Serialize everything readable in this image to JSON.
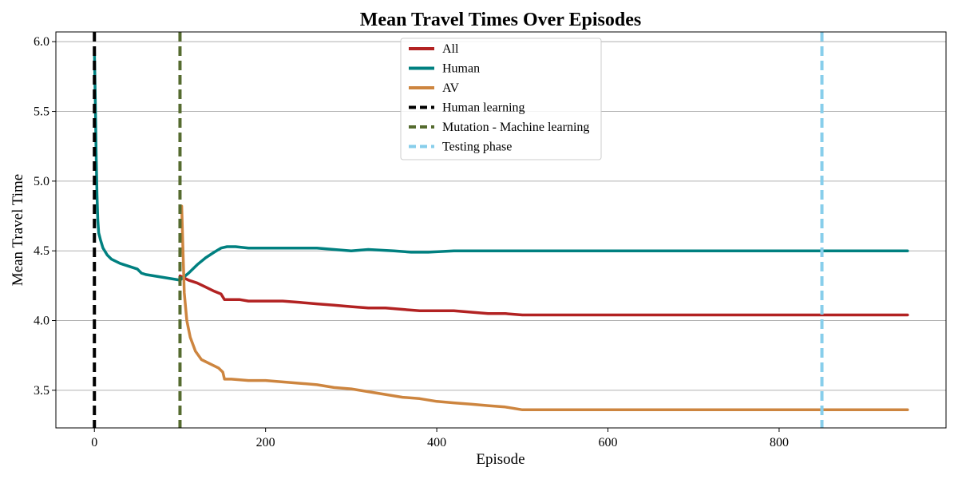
{
  "chart_data": {
    "type": "line",
    "title": "Mean Travel Times Over Episodes",
    "xlabel": "Episode",
    "ylabel": "Mean Travel Time",
    "xlim": [
      -45,
      995
    ],
    "ylim": [
      3.23,
      6.07
    ],
    "xticks": [
      0,
      200,
      400,
      600,
      800
    ],
    "yticks": [
      3.5,
      4.0,
      4.5,
      5.0,
      5.5,
      6.0
    ],
    "ytick_labels": [
      "3.5",
      "4.0",
      "4.5",
      "5.0",
      "5.5",
      "6.0"
    ],
    "grid": "horizontal",
    "legend_position": "top-center",
    "series": [
      {
        "name": "All",
        "color": "#b22222",
        "points": [
          [
            100,
            4.32
          ],
          [
            110,
            4.29
          ],
          [
            120,
            4.27
          ],
          [
            130,
            4.24
          ],
          [
            140,
            4.21
          ],
          [
            148,
            4.19
          ],
          [
            152,
            4.15
          ],
          [
            160,
            4.15
          ],
          [
            170,
            4.15
          ],
          [
            180,
            4.14
          ],
          [
            200,
            4.14
          ],
          [
            220,
            4.14
          ],
          [
            240,
            4.13
          ],
          [
            260,
            4.12
          ],
          [
            280,
            4.11
          ],
          [
            300,
            4.1
          ],
          [
            320,
            4.09
          ],
          [
            340,
            4.09
          ],
          [
            360,
            4.08
          ],
          [
            380,
            4.07
          ],
          [
            400,
            4.07
          ],
          [
            420,
            4.07
          ],
          [
            440,
            4.06
          ],
          [
            460,
            4.05
          ],
          [
            480,
            4.05
          ],
          [
            500,
            4.04
          ],
          [
            520,
            4.04
          ],
          [
            600,
            4.04
          ],
          [
            700,
            4.04
          ],
          [
            800,
            4.04
          ],
          [
            900,
            4.04
          ],
          [
            950,
            4.04
          ]
        ]
      },
      {
        "name": "Human",
        "color": "#008080",
        "points": [
          [
            0,
            5.95
          ],
          [
            1,
            5.6
          ],
          [
            2,
            5.2
          ],
          [
            3,
            4.9
          ],
          [
            4,
            4.72
          ],
          [
            5,
            4.63
          ],
          [
            7,
            4.58
          ],
          [
            10,
            4.52
          ],
          [
            15,
            4.47
          ],
          [
            20,
            4.44
          ],
          [
            30,
            4.41
          ],
          [
            40,
            4.39
          ],
          [
            50,
            4.37
          ],
          [
            55,
            4.34
          ],
          [
            60,
            4.33
          ],
          [
            70,
            4.32
          ],
          [
            80,
            4.31
          ],
          [
            90,
            4.3
          ],
          [
            100,
            4.29
          ],
          [
            110,
            4.34
          ],
          [
            120,
            4.4
          ],
          [
            130,
            4.45
          ],
          [
            140,
            4.49
          ],
          [
            148,
            4.52
          ],
          [
            155,
            4.53
          ],
          [
            165,
            4.53
          ],
          [
            180,
            4.52
          ],
          [
            200,
            4.52
          ],
          [
            230,
            4.52
          ],
          [
            260,
            4.52
          ],
          [
            280,
            4.51
          ],
          [
            300,
            4.5
          ],
          [
            320,
            4.51
          ],
          [
            350,
            4.5
          ],
          [
            370,
            4.49
          ],
          [
            390,
            4.49
          ],
          [
            420,
            4.5
          ],
          [
            440,
            4.5
          ],
          [
            470,
            4.5
          ],
          [
            500,
            4.5
          ],
          [
            550,
            4.5
          ],
          [
            600,
            4.5
          ],
          [
            700,
            4.5
          ],
          [
            800,
            4.5
          ],
          [
            900,
            4.5
          ],
          [
            950,
            4.5
          ]
        ]
      },
      {
        "name": "AV",
        "color": "#cd853f",
        "points": [
          [
            102,
            4.82
          ],
          [
            103,
            4.6
          ],
          [
            105,
            4.2
          ],
          [
            108,
            4.0
          ],
          [
            112,
            3.88
          ],
          [
            118,
            3.78
          ],
          [
            125,
            3.72
          ],
          [
            135,
            3.69
          ],
          [
            145,
            3.66
          ],
          [
            150,
            3.63
          ],
          [
            152,
            3.58
          ],
          [
            160,
            3.58
          ],
          [
            180,
            3.57
          ],
          [
            200,
            3.57
          ],
          [
            220,
            3.56
          ],
          [
            240,
            3.55
          ],
          [
            260,
            3.54
          ],
          [
            280,
            3.52
          ],
          [
            300,
            3.51
          ],
          [
            320,
            3.49
          ],
          [
            340,
            3.47
          ],
          [
            360,
            3.45
          ],
          [
            380,
            3.44
          ],
          [
            400,
            3.42
          ],
          [
            420,
            3.41
          ],
          [
            440,
            3.4
          ],
          [
            460,
            3.39
          ],
          [
            480,
            3.38
          ],
          [
            500,
            3.36
          ],
          [
            520,
            3.36
          ],
          [
            600,
            3.36
          ],
          [
            700,
            3.36
          ],
          [
            800,
            3.36
          ],
          [
            900,
            3.36
          ],
          [
            950,
            3.36
          ]
        ]
      }
    ],
    "vertical_lines": [
      {
        "name": "Human learning",
        "x": 0,
        "color": "#000000"
      },
      {
        "name": "Mutation - Machine learning",
        "x": 100,
        "color": "#556b2f"
      },
      {
        "name": "Testing phase",
        "x": 850,
        "color": "#87ceeb"
      }
    ]
  }
}
